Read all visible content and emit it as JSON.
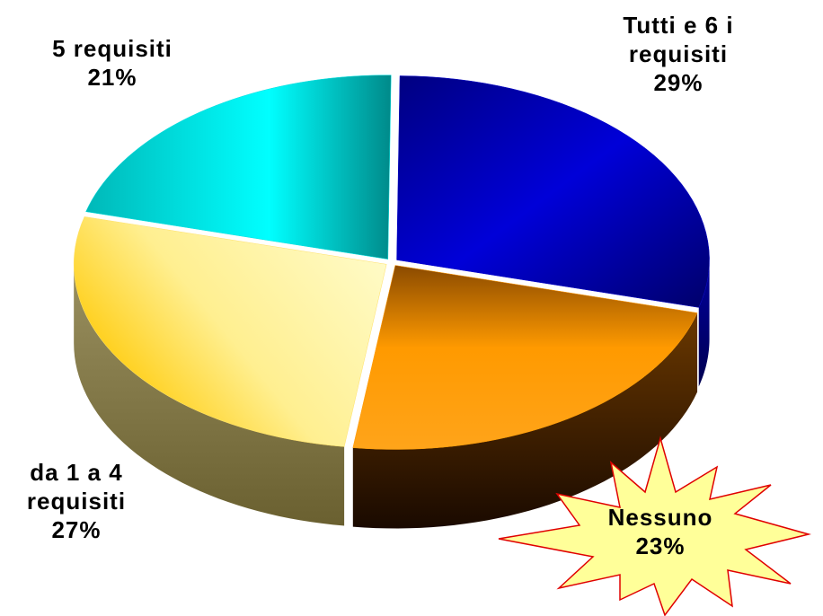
{
  "chart_data": {
    "type": "pie",
    "categories": [
      "Tutti e 6 i requisiti",
      "Nessuno",
      "da 1 a 4 requisiti",
      "5 requisiti"
    ],
    "values": [
      29,
      23,
      27,
      21
    ],
    "value_labels": [
      "29%",
      "23%",
      "27%",
      "21%"
    ],
    "colors": [
      "#0000c8",
      "#ff9900",
      "#ffe066",
      "#00dede"
    ]
  }
}
